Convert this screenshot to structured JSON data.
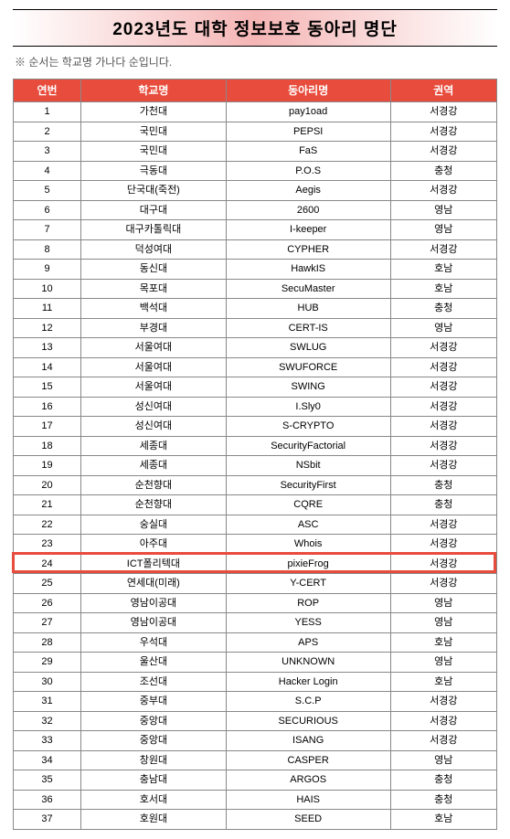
{
  "title": "2023년도 대학 정보보호 동아리 명단",
  "subtitle": "※ 순서는 학교명 가나다 순입니다.",
  "columns": [
    "연번",
    "학교명",
    "동아리명",
    "권역"
  ],
  "header_bg": "#e84c3d",
  "header_fg": "#ffffff",
  "highlight_color": "#e84c3d",
  "highlight_row_index": 23,
  "rows": [
    [
      "1",
      "가천대",
      "pay1oad",
      "서경강"
    ],
    [
      "2",
      "국민대",
      "PEPSI",
      "서경강"
    ],
    [
      "3",
      "국민대",
      "FaS",
      "서경강"
    ],
    [
      "4",
      "극동대",
      "P.O.S",
      "충청"
    ],
    [
      "5",
      "단국대(죽전)",
      "Aegis",
      "서경강"
    ],
    [
      "6",
      "대구대",
      "2600",
      "영남"
    ],
    [
      "7",
      "대구카톨릭대",
      "I-keeper",
      "영남"
    ],
    [
      "8",
      "덕성여대",
      "CYPHER",
      "서경강"
    ],
    [
      "9",
      "동신대",
      "HawkIS",
      "호남"
    ],
    [
      "10",
      "목포대",
      "SecuMaster",
      "호남"
    ],
    [
      "11",
      "백석대",
      "HUB",
      "충청"
    ],
    [
      "12",
      "부경대",
      "CERT-IS",
      "영남"
    ],
    [
      "13",
      "서울여대",
      "SWLUG",
      "서경강"
    ],
    [
      "14",
      "서울여대",
      "SWUFORCE",
      "서경강"
    ],
    [
      "15",
      "서울여대",
      "SWING",
      "서경강"
    ],
    [
      "16",
      "성신여대",
      "I.Sly0",
      "서경강"
    ],
    [
      "17",
      "성신여대",
      "S-CRYPTO",
      "서경강"
    ],
    [
      "18",
      "세종대",
      "SecurityFactorial",
      "서경강"
    ],
    [
      "19",
      "세종대",
      "NSbit",
      "서경강"
    ],
    [
      "20",
      "순천향대",
      "SecurityFirst",
      "충청"
    ],
    [
      "21",
      "순천향대",
      "CQRE",
      "충청"
    ],
    [
      "22",
      "숭실대",
      "ASC",
      "서경강"
    ],
    [
      "23",
      "아주대",
      "Whois",
      "서경강"
    ],
    [
      "24",
      "ICT폴리텍대",
      "pixieFrog",
      "서경강"
    ],
    [
      "25",
      "연세대(미래)",
      "Y-CERT",
      "서경강"
    ],
    [
      "26",
      "영남이공대",
      "ROP",
      "영남"
    ],
    [
      "27",
      "영남이공대",
      "YESS",
      "영남"
    ],
    [
      "28",
      "우석대",
      "APS",
      "호남"
    ],
    [
      "29",
      "울산대",
      "UNKNOWN",
      "영남"
    ],
    [
      "30",
      "조선대",
      "Hacker Login",
      "호남"
    ],
    [
      "31",
      "중부대",
      "S.C.P",
      "서경강"
    ],
    [
      "32",
      "중앙대",
      "SECURIOUS",
      "서경강"
    ],
    [
      "33",
      "중앙대",
      "ISANG",
      "서경강"
    ],
    [
      "34",
      "창원대",
      "CASPER",
      "영남"
    ],
    [
      "35",
      "충남대",
      "ARGOS",
      "충청"
    ],
    [
      "36",
      "호서대",
      "HAIS",
      "충청"
    ],
    [
      "37",
      "호원대",
      "SEED",
      "호남"
    ]
  ]
}
